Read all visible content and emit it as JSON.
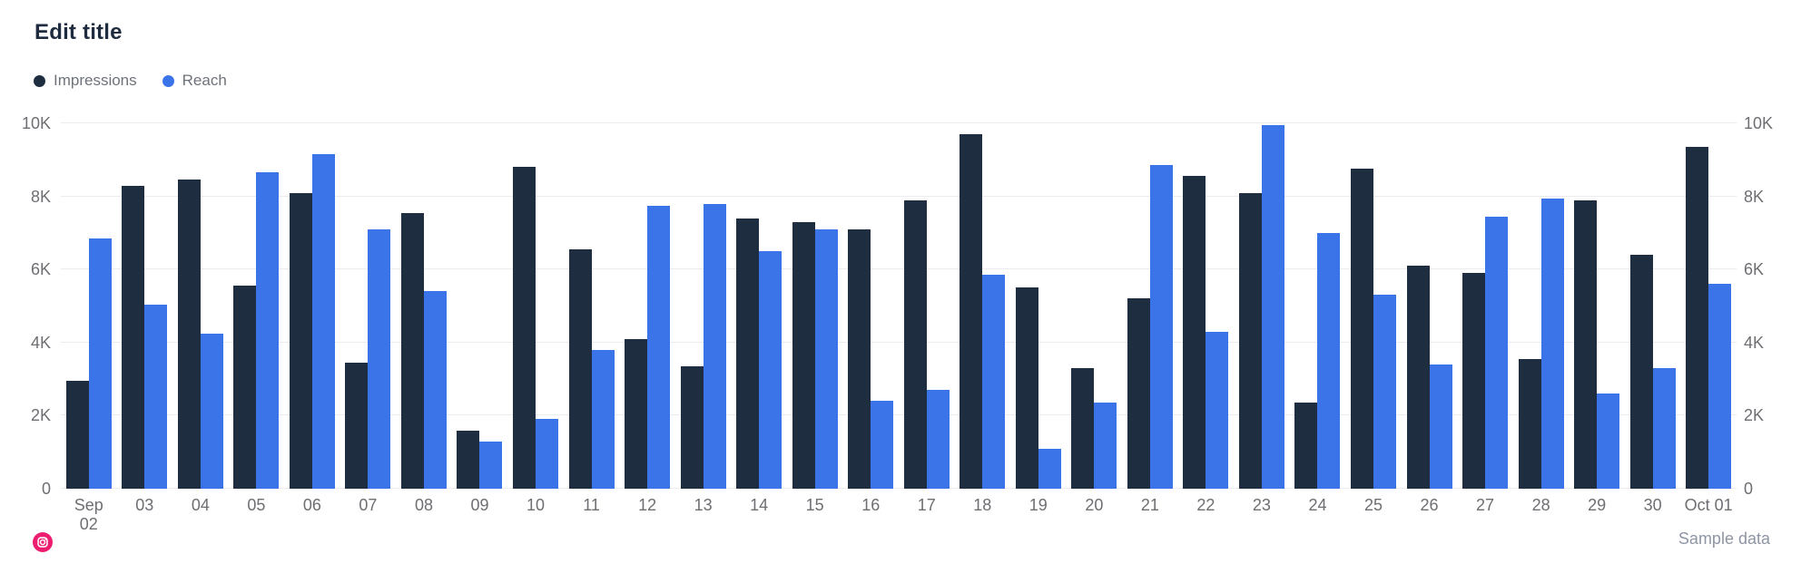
{
  "title": "Edit title",
  "legend": [
    {
      "label": "Impressions",
      "color": "#1f2d40"
    },
    {
      "label": "Reach",
      "color": "#3b73e8"
    }
  ],
  "footer": {
    "note": "Sample data",
    "icon": "instagram-icon",
    "icon_color": "#ed1e6f"
  },
  "colors": {
    "background": "#ffffff",
    "title_text": "#1f2c3f",
    "axis_text": "#6e6e73",
    "legend_text": "#6e727a",
    "gridline": "#ececef",
    "impressions_bar": "#1f2d40",
    "reach_bar": "#3b73e8"
  },
  "chart_data": {
    "type": "bar",
    "title": "Edit title",
    "xlabel": "",
    "ylabel": "",
    "grid": "horizontal",
    "legend_position": "top-left",
    "y_axis_sides": [
      "left",
      "right"
    ],
    "ylim": [
      0,
      10000
    ],
    "yticks": [
      0,
      2000,
      4000,
      6000,
      8000,
      10000
    ],
    "ytick_labels": [
      "0",
      "2K",
      "4K",
      "6K",
      "8K",
      "10K"
    ],
    "categories": [
      "Sep 02",
      "03",
      "04",
      "05",
      "06",
      "07",
      "08",
      "09",
      "10",
      "11",
      "12",
      "13",
      "14",
      "15",
      "16",
      "17",
      "18",
      "19",
      "20",
      "21",
      "22",
      "23",
      "24",
      "25",
      "26",
      "27",
      "28",
      "29",
      "30",
      "Oct 01"
    ],
    "category_label_lines": [
      [
        "Sep",
        "02"
      ],
      [
        "03"
      ],
      [
        "04"
      ],
      [
        "05"
      ],
      [
        "06"
      ],
      [
        "07"
      ],
      [
        "08"
      ],
      [
        "09"
      ],
      [
        "10"
      ],
      [
        "11"
      ],
      [
        "12"
      ],
      [
        "13"
      ],
      [
        "14"
      ],
      [
        "15"
      ],
      [
        "16"
      ],
      [
        "17"
      ],
      [
        "18"
      ],
      [
        "19"
      ],
      [
        "20"
      ],
      [
        "21"
      ],
      [
        "22"
      ],
      [
        "23"
      ],
      [
        "24"
      ],
      [
        "25"
      ],
      [
        "26"
      ],
      [
        "27"
      ],
      [
        "28"
      ],
      [
        "29"
      ],
      [
        "30"
      ],
      [
        "Oct 01"
      ]
    ],
    "series": [
      {
        "name": "Impressions",
        "color": "#1f2d40",
        "values": [
          2950,
          8300,
          8450,
          5550,
          8100,
          3450,
          7550,
          1600,
          8800,
          6550,
          4100,
          3350,
          7400,
          7300,
          7100,
          7900,
          9700,
          5500,
          3300,
          5200,
          8550,
          8100,
          2350,
          8750,
          6100,
          5900,
          3550,
          7900,
          6400,
          9350
        ]
      },
      {
        "name": "Reach",
        "color": "#3b73e8",
        "values": [
          6850,
          5050,
          4250,
          8650,
          9150,
          7100,
          5400,
          1300,
          1900,
          3800,
          7750,
          7800,
          6500,
          7100,
          2400,
          2700,
          5850,
          1100,
          2350,
          8850,
          4300,
          9950,
          7000,
          5300,
          3400,
          7450,
          7950,
          2600,
          3300,
          5600
        ]
      }
    ]
  }
}
